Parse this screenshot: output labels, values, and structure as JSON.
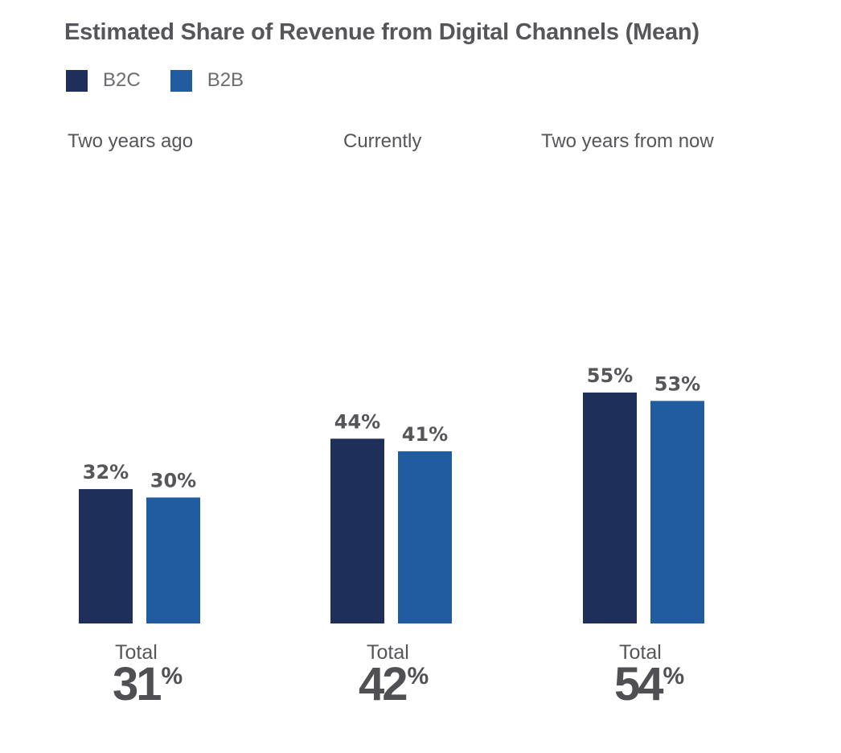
{
  "chart_data": {
    "type": "bar",
    "title": "Estimated Share of Revenue from Digital Channels (Mean)",
    "xlabel": "",
    "ylabel": "",
    "ylim": [
      0,
      60
    ],
    "grid": false,
    "legend_position": "top-left",
    "categories": [
      "Two years ago",
      "Currently",
      "Two years from now"
    ],
    "series": [
      {
        "name": "B2C",
        "color": "#1e2f5a",
        "values": [
          32,
          44,
          55
        ]
      },
      {
        "name": "B2B",
        "color": "#205c9f",
        "values": [
          30,
          41,
          53
        ]
      }
    ],
    "value_suffix": "%",
    "totals": {
      "label": "Total",
      "values": [
        31,
        42,
        54
      ],
      "suffix": "%"
    }
  }
}
